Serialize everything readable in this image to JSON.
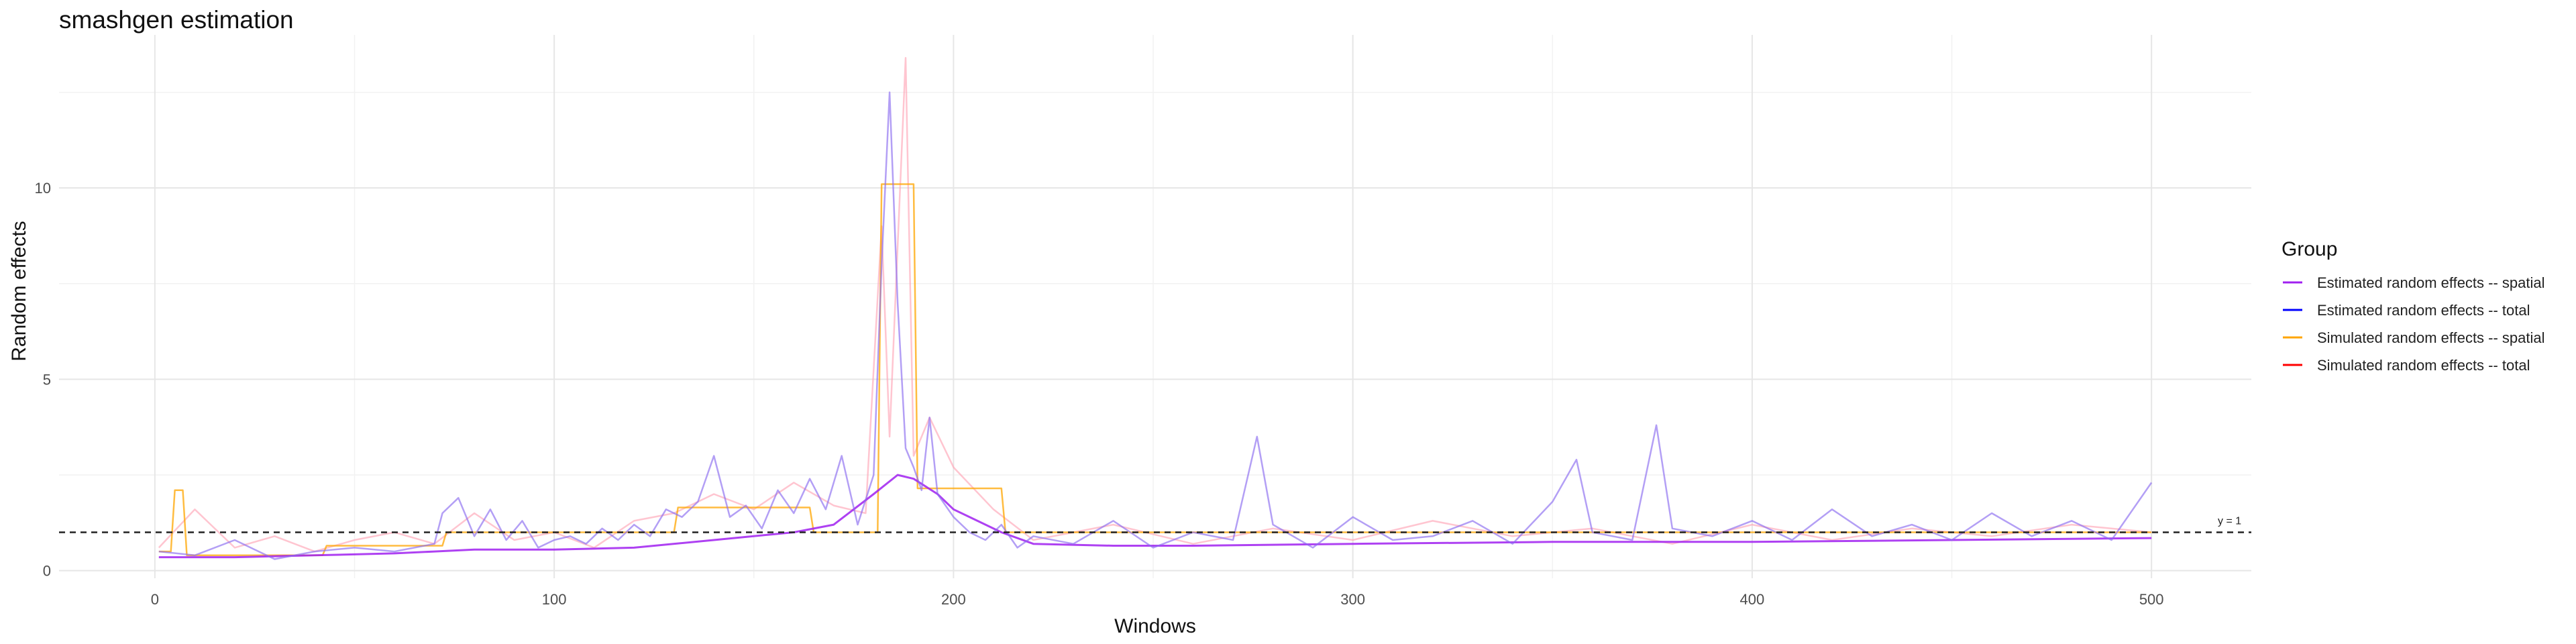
{
  "chart_data": {
    "type": "line",
    "title": "smashgen estimation",
    "xlabel": "Windows",
    "ylabel": "Random effects",
    "xlim": [
      -24,
      525
    ],
    "ylim": [
      -0.2,
      14.0
    ],
    "x_ticks": [
      0,
      100,
      200,
      300,
      400,
      500
    ],
    "y_ticks": [
      0,
      5,
      10
    ],
    "grid": true,
    "legend": {
      "title": "Group",
      "position": "right",
      "entries": [
        {
          "label": "Estimated random effects -- spatial",
          "color": "#a020f0"
        },
        {
          "label": "Estimated random effects -- total",
          "color": "#0000ff"
        },
        {
          "label": "Simulated random effects -- spatial",
          "color": "#ffa500"
        },
        {
          "label": "Simulated random effects -- total",
          "color": "#ff0000"
        }
      ]
    },
    "reference_line": {
      "y": 1,
      "style": "dashed",
      "label": "y = 1"
    },
    "series": [
      {
        "name": "Estimated random effects -- total",
        "color": "#8a6cf0",
        "x": [
          1,
          10,
          20,
          30,
          40,
          50,
          60,
          70,
          72,
          76,
          80,
          84,
          88,
          92,
          96,
          100,
          104,
          108,
          112,
          116,
          120,
          124,
          128,
          132,
          136,
          140,
          144,
          148,
          152,
          156,
          160,
          164,
          168,
          172,
          176,
          180,
          182,
          184,
          186,
          188,
          190,
          192,
          194,
          196,
          200,
          204,
          208,
          212,
          216,
          220,
          230,
          240,
          250,
          260,
          270,
          276,
          280,
          290,
          300,
          310,
          320,
          330,
          340,
          350,
          356,
          360,
          370,
          376,
          380,
          390,
          400,
          410,
          420,
          430,
          440,
          450,
          460,
          470,
          480,
          490,
          500
        ],
        "values": [
          0.5,
          0.4,
          0.8,
          0.3,
          0.5,
          0.6,
          0.5,
          0.7,
          1.5,
          1.9,
          0.9,
          1.6,
          0.8,
          1.3,
          0.6,
          0.8,
          0.9,
          0.7,
          1.1,
          0.8,
          1.2,
          0.9,
          1.6,
          1.4,
          1.8,
          3.0,
          1.4,
          1.7,
          1.1,
          2.1,
          1.5,
          2.4,
          1.6,
          3.0,
          1.2,
          2.5,
          8.0,
          12.5,
          7.0,
          3.2,
          2.7,
          2.1,
          4.0,
          2.0,
          1.4,
          1.0,
          0.8,
          1.2,
          0.6,
          0.9,
          0.7,
          1.3,
          0.6,
          1.0,
          0.8,
          3.5,
          1.2,
          0.6,
          1.4,
          0.8,
          0.9,
          1.3,
          0.7,
          1.8,
          2.9,
          1.0,
          0.8,
          3.8,
          1.1,
          0.9,
          1.3,
          0.8,
          1.6,
          0.9,
          1.2,
          0.8,
          1.5,
          0.9,
          1.3,
          0.8,
          2.3
        ]
      },
      {
        "name": "Estimated random effects -- spatial",
        "color": "#a020f0",
        "x": [
          1,
          20,
          40,
          60,
          70,
          80,
          100,
          120,
          140,
          160,
          170,
          180,
          186,
          190,
          196,
          200,
          206,
          212,
          220,
          240,
          260,
          300,
          350,
          400,
          450,
          500
        ],
        "values": [
          0.35,
          0.35,
          0.4,
          0.45,
          0.5,
          0.55,
          0.55,
          0.6,
          0.8,
          1.0,
          1.2,
          2.0,
          2.5,
          2.4,
          2.0,
          1.6,
          1.3,
          1.0,
          0.7,
          0.65,
          0.65,
          0.7,
          0.75,
          0.75,
          0.8,
          0.85
        ]
      },
      {
        "name": "Simulated random effects -- spatial",
        "color": "#ffa500",
        "x": [
          1,
          4,
          5,
          7,
          8,
          42,
          43,
          72,
          73,
          130,
          131,
          164,
          165,
          181,
          182,
          190,
          191,
          212,
          213,
          500
        ],
        "values": [
          0.5,
          0.5,
          2.1,
          2.1,
          0.4,
          0.4,
          0.65,
          0.65,
          1.0,
          1.0,
          1.65,
          1.65,
          1.0,
          1.0,
          10.1,
          10.1,
          2.15,
          2.15,
          1.0,
          1.0
        ]
      },
      {
        "name": "Simulated random effects -- total",
        "color": "#ff9fb0",
        "x": [
          1,
          10,
          20,
          30,
          40,
          50,
          60,
          70,
          80,
          90,
          100,
          110,
          120,
          130,
          140,
          150,
          160,
          170,
          178,
          182,
          184,
          188,
          190,
          194,
          200,
          210,
          220,
          240,
          260,
          280,
          300,
          320,
          340,
          360,
          380,
          400,
          420,
          440,
          460,
          480,
          500
        ],
        "values": [
          0.6,
          1.6,
          0.6,
          0.9,
          0.5,
          0.8,
          1.0,
          0.7,
          1.5,
          0.8,
          1.0,
          0.6,
          1.3,
          1.5,
          2.0,
          1.6,
          2.3,
          1.7,
          1.5,
          9.0,
          3.5,
          13.4,
          3.0,
          4.0,
          2.7,
          1.6,
          0.8,
          1.2,
          0.7,
          1.1,
          0.8,
          1.3,
          0.9,
          1.1,
          0.7,
          1.2,
          0.8,
          1.1,
          0.9,
          1.2,
          1.0
        ]
      }
    ]
  }
}
